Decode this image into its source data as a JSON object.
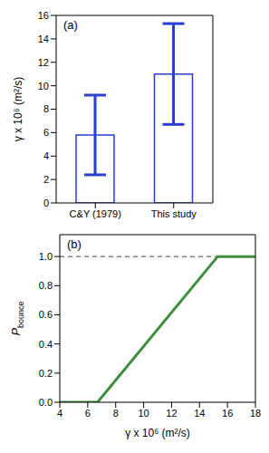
{
  "chart_data": [
    {
      "type": "bar",
      "panel_label": "(a)",
      "categories": [
        "C&Y (1979)",
        "This study"
      ],
      "values": [
        5.8,
        11.0
      ],
      "errors": [
        3.4,
        4.3
      ],
      "color": "#2b3fd0",
      "ylabel": "γ x 10⁶ (m²/s)",
      "ylim": [
        0,
        16
      ],
      "yticks": [
        0,
        2,
        4,
        6,
        8,
        10,
        12,
        14,
        16
      ]
    },
    {
      "type": "line",
      "panel_label": "(b)",
      "x": [
        4,
        6.7,
        15.3,
        18
      ],
      "values": [
        0,
        0,
        1,
        1
      ],
      "color": "#3c8d3c",
      "xlabel": "γ x 10⁶ (m²/s)",
      "ylabel": "Pbounce",
      "xlim": [
        4,
        18
      ],
      "xticks": [
        4,
        6,
        8,
        10,
        12,
        14,
        16,
        18
      ],
      "ylim": [
        0,
        1.15
      ],
      "yticks": [
        {
          "value": 0,
          "label": "0.0"
        },
        {
          "value": 0.2,
          "label": "0.2"
        },
        {
          "value": 0.4,
          "label": "0.4"
        },
        {
          "value": 0.6,
          "label": "0.6"
        },
        {
          "value": 0.8,
          "label": "0.8"
        },
        {
          "value": 1.0,
          "label": "1.0"
        }
      ],
      "hline": 1.0
    }
  ]
}
